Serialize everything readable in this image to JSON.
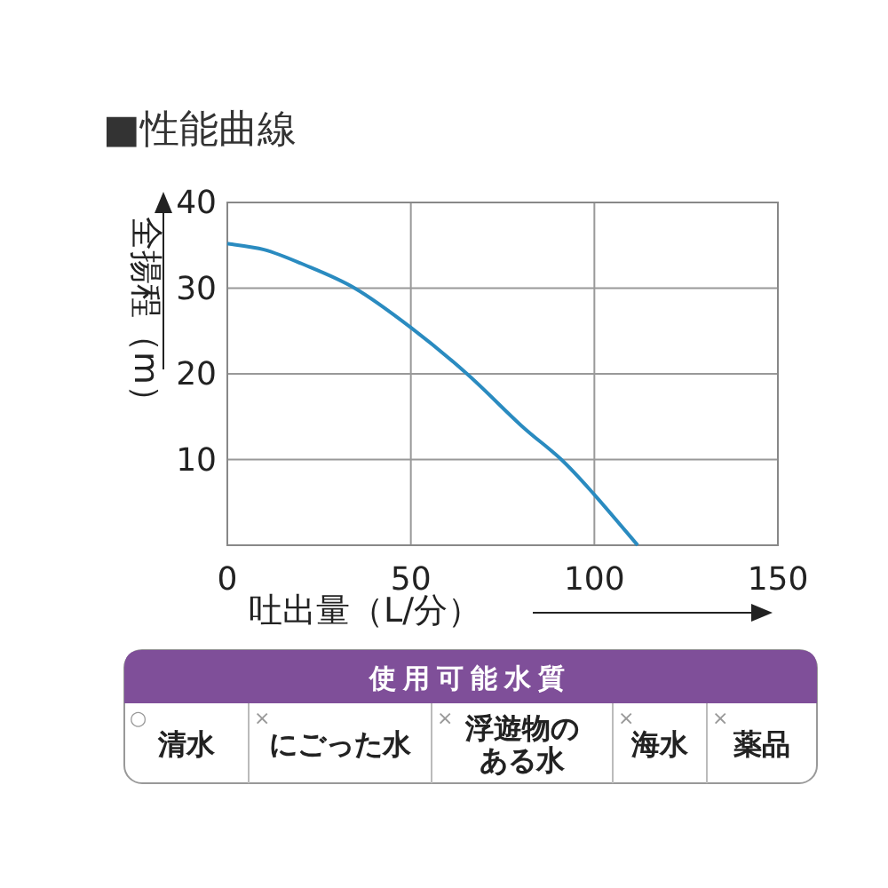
{
  "chart_data": [
    {
      "type": "line",
      "title": "■性能曲線",
      "xlabel": "吐出量（L/分）",
      "ylabel": "全揚程（m）",
      "x": [
        0,
        10,
        20,
        34.7,
        50,
        65.3,
        80,
        91,
        100,
        111.8
      ],
      "series": [
        {
          "color": "#2a8bc0",
          "values": [
            35.2,
            34.5,
            32.9,
            30,
            25.4,
            20,
            14,
            10,
            5.9,
            0
          ]
        }
      ],
      "xlim": [
        0,
        150
      ],
      "xticks": [
        0,
        50,
        100,
        150
      ],
      "ylim": [
        0,
        40
      ],
      "yticks": [
        {
          "value": 0,
          "label": null
        },
        10,
        20,
        30,
        40
      ],
      "grid": true,
      "marker": "none",
      "line_style": "solid"
    },
    {
      "type": "other",
      "title": "使用可能水質",
      "categories": [
        "清水",
        "にごった水",
        "浮遊物のある水",
        "海水",
        "薬品"
      ],
      "cell_labels": [
        [
          "○",
          "×",
          "×",
          "×",
          "×"
        ]
      ]
    }
  ]
}
